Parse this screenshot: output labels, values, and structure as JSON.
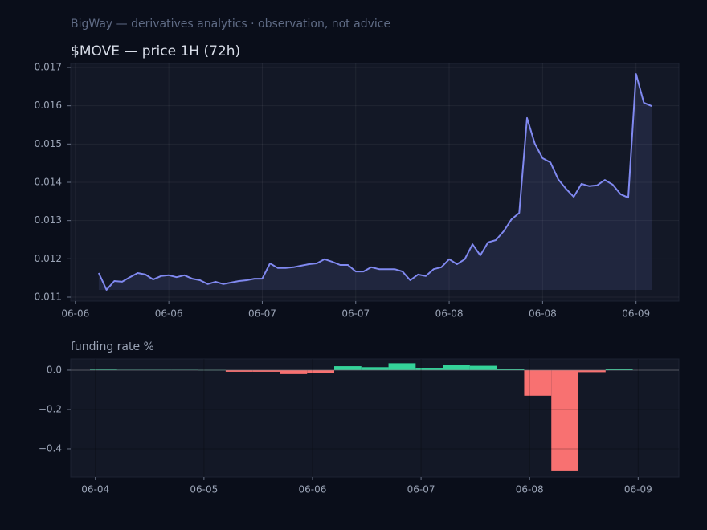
{
  "header": "BigWay — derivatives analytics · observation, not advice",
  "chart_data": [
    {
      "type": "line",
      "title": "$MOVE — price 1H (72h)",
      "color": "#8089f0",
      "grid": true,
      "values": [
        0.01163,
        0.01119,
        0.01142,
        0.0114,
        0.01152,
        0.01163,
        0.01159,
        0.01146,
        0.01155,
        0.01157,
        0.01152,
        0.01157,
        0.01148,
        0.01144,
        0.01134,
        0.0114,
        0.01134,
        0.01138,
        0.01142,
        0.01144,
        0.01148,
        0.01148,
        0.01188,
        0.01176,
        0.01176,
        0.01178,
        0.01182,
        0.01186,
        0.01188,
        0.01199,
        0.01192,
        0.01184,
        0.01184,
        0.01167,
        0.01167,
        0.01178,
        0.01173,
        0.01173,
        0.01173,
        0.01167,
        0.01144,
        0.01159,
        0.01155,
        0.01173,
        0.01178,
        0.01199,
        0.01186,
        0.01199,
        0.01238,
        0.01209,
        0.01243,
        0.01249,
        0.01272,
        0.01303,
        0.0132,
        0.01568,
        0.01501,
        0.01463,
        0.01452,
        0.01408,
        0.01383,
        0.01362,
        0.01396,
        0.0139,
        0.01392,
        0.01406,
        0.01394,
        0.01369,
        0.0136,
        0.01683,
        0.01608,
        0.01599
      ],
      "xlim": [
        -3.6,
        74.5
      ],
      "xticks": [
        {
          "value": -3,
          "label": "06-06"
        },
        {
          "value": 9,
          "label": "06-06"
        },
        {
          "value": 21,
          "label": "06-07"
        },
        {
          "value": 33,
          "label": "06-07"
        },
        {
          "value": 45,
          "label": "06-08"
        },
        {
          "value": 57,
          "label": "06-08"
        },
        {
          "value": 69,
          "label": "06-09"
        }
      ],
      "ylim": [
        0.010895,
        0.017105
      ],
      "yticks": [
        0.011,
        0.012,
        0.013,
        0.014,
        0.015,
        0.016,
        0.017
      ]
    },
    {
      "type": "bar",
      "title": "funding rate %",
      "positive_color": "#34d399",
      "negative_color": "#f87171",
      "grid": true,
      "values": [
        0.003,
        0.002,
        0.002,
        0.002,
        0.001,
        -0.008,
        -0.008,
        -0.02,
        -0.015,
        0.02,
        0.015,
        0.035,
        0.012,
        0.025,
        0.022,
        0.004,
        -0.13,
        -0.51,
        -0.01,
        0.005
      ],
      "xlim": [
        -0.71,
        21.7
      ],
      "xticks": [
        {
          "value": 0.2,
          "label": "06-04"
        },
        {
          "value": 4.2,
          "label": "06-05"
        },
        {
          "value": 8.2,
          "label": "06-06"
        },
        {
          "value": 12.2,
          "label": "06-07"
        },
        {
          "value": 16.2,
          "label": "06-08"
        },
        {
          "value": 20.2,
          "label": "06-09"
        }
      ],
      "ylim": [
        -0.543,
        0.057
      ],
      "yticks": [
        {
          "value": -0.4,
          "label": "−0.4"
        },
        {
          "value": -0.2,
          "label": "−0.2"
        },
        {
          "value": 0,
          "label": "0.0"
        }
      ]
    }
  ]
}
